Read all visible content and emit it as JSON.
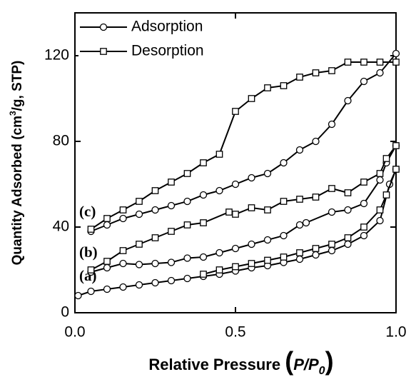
{
  "chart_data": {
    "type": "line",
    "xlabel": [
      "Relative Pressure ",
      "(",
      "P/P",
      "0",
      ")"
    ],
    "ylabel": [
      "Quantity Adsorbed (cm",
      "3",
      "/g, STP)"
    ],
    "xlim": [
      0,
      1
    ],
    "ylim": [
      0,
      140
    ],
    "xticks": [
      {
        "value": 0,
        "label": "0.0"
      },
      {
        "value": 0.5,
        "label": "0.5"
      },
      {
        "value": 1,
        "label": "1.0"
      }
    ],
    "yticks": [
      0,
      40,
      80,
      120
    ],
    "color": "#000000",
    "legend_position": "upper left",
    "legend": [
      {
        "name": "Adsorption",
        "marker": "circle"
      },
      {
        "name": "Desorption",
        "marker": "square"
      }
    ],
    "series": [
      {
        "label": "(a)",
        "adsorption": {
          "x": [
            0.01,
            0.05,
            0.1,
            0.15,
            0.2,
            0.25,
            0.3,
            0.35,
            0.4,
            0.45,
            0.5,
            0.55,
            0.6,
            0.65,
            0.7,
            0.75,
            0.8,
            0.85,
            0.9,
            0.95,
            0.98,
            1.0
          ],
          "values": [
            8,
            10,
            11,
            12,
            13,
            14,
            15,
            16,
            17,
            18,
            19.5,
            21,
            22,
            23.5,
            25,
            27,
            29,
            32,
            36,
            43,
            60,
            67
          ]
        },
        "desorption": {
          "x": [
            1.0,
            0.97,
            0.95,
            0.9,
            0.85,
            0.8,
            0.75,
            0.7,
            0.65,
            0.6,
            0.55,
            0.5,
            0.45,
            0.4
          ],
          "values": [
            67,
            55,
            48,
            40,
            35,
            32,
            30,
            28,
            26,
            24.5,
            23,
            21.5,
            20,
            18
          ]
        }
      },
      {
        "label": "(b)",
        "adsorption": {
          "x": [
            0.05,
            0.1,
            0.15,
            0.2,
            0.25,
            0.3,
            0.35,
            0.4,
            0.45,
            0.5,
            0.55,
            0.6,
            0.65,
            0.7,
            0.72,
            0.8,
            0.85,
            0.9,
            0.95,
            0.97,
            1.0
          ],
          "values": [
            19,
            21,
            23,
            22.5,
            23,
            23.5,
            25.5,
            26,
            28,
            30,
            32,
            34,
            36,
            41,
            42,
            47,
            48,
            51,
            62,
            70,
            78
          ]
        },
        "desorption": {
          "x": [
            1.0,
            0.97,
            0.95,
            0.9,
            0.85,
            0.8,
            0.75,
            0.7,
            0.65,
            0.6,
            0.55,
            0.5,
            0.48,
            0.4,
            0.35,
            0.3,
            0.25,
            0.2,
            0.15,
            0.1,
            0.05
          ],
          "values": [
            78,
            72,
            65,
            61,
            56,
            58,
            54,
            53,
            52,
            48,
            49,
            46,
            47,
            42,
            41,
            38,
            35,
            32,
            29,
            24,
            20
          ]
        }
      },
      {
        "label": "(c)",
        "adsorption": {
          "x": [
            0.05,
            0.1,
            0.15,
            0.2,
            0.25,
            0.3,
            0.35,
            0.4,
            0.45,
            0.5,
            0.55,
            0.6,
            0.65,
            0.7,
            0.75,
            0.8,
            0.85,
            0.9,
            0.95,
            1.0
          ],
          "values": [
            38,
            41,
            44,
            46,
            48,
            50,
            52,
            55,
            57,
            60,
            63,
            65,
            70,
            76,
            80,
            88,
            99,
            108,
            112,
            121
          ]
        },
        "desorption": {
          "x": [
            1.0,
            0.95,
            0.9,
            0.85,
            0.8,
            0.75,
            0.7,
            0.65,
            0.6,
            0.55,
            0.5,
            0.45,
            0.4,
            0.35,
            0.3,
            0.25,
            0.2,
            0.15,
            0.1,
            0.05
          ],
          "values": [
            117,
            117,
            117,
            117,
            113,
            112,
            110,
            106,
            105,
            100,
            94,
            74,
            70,
            65,
            61,
            57,
            52,
            48,
            44,
            39
          ]
        }
      }
    ]
  }
}
